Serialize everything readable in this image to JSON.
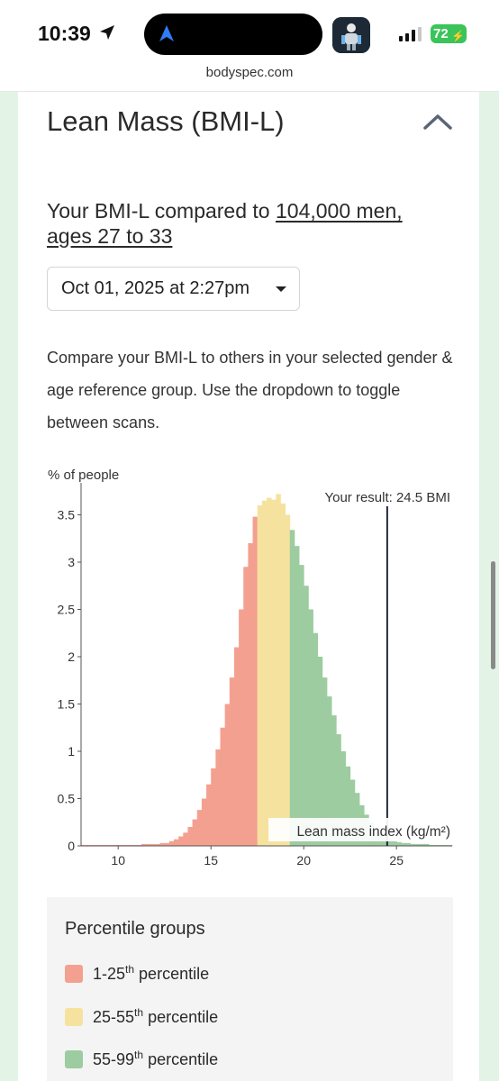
{
  "status_bar": {
    "time": "10:39",
    "battery": "72",
    "icons": [
      "location-arrow-icon",
      "navigation-icon",
      "app-icon",
      "signal-icon",
      "battery-icon"
    ]
  },
  "browser": {
    "url": "bodyspec.com"
  },
  "section": {
    "title": "Lean Mass (BMI-L)",
    "collapse_icon": "chevron-up-icon"
  },
  "comparison": {
    "prefix": "Your BMI-L compared to ",
    "group_link": "104,000 men,",
    "age_link": "ages 27 to 33"
  },
  "scan_select": {
    "selected": "Oct 01, 2025 at 2:27pm"
  },
  "description": "Compare your BMI-L to others in your selected gender & age reference group. Use the dropdown to toggle between scans.",
  "colors": {
    "low": "#f4a090",
    "mid": "#f6e29f",
    "high": "#9ccc9f",
    "marker": "#1f2a3a"
  },
  "chart_data": {
    "type": "bar",
    "ylabel": "% of people",
    "xlabel": "Lean mass index (kg/m²)",
    "xlim": [
      8,
      28
    ],
    "ylim": [
      0,
      3.8
    ],
    "xticks": [
      10,
      15,
      20,
      25
    ],
    "yticks": [
      0,
      0.5,
      1,
      1.5,
      2,
      2.5,
      3,
      3.5
    ],
    "ytick_labels": [
      "0",
      "0.5",
      "1",
      "1.5",
      "2",
      "2.5",
      "3",
      "3.5"
    ],
    "bin_width": 0.25,
    "percentile_cutoffs": [
      17.4,
      19.2
    ],
    "result_value": 24.5,
    "result_label": "Your result: 24.5 BMI",
    "x": [
      8.125,
      8.375,
      8.625,
      8.875,
      9.125,
      9.375,
      9.625,
      9.875,
      10.125,
      10.375,
      10.625,
      10.875,
      11.125,
      11.375,
      11.625,
      11.875,
      12.125,
      12.375,
      12.625,
      12.875,
      13.125,
      13.375,
      13.625,
      13.875,
      14.125,
      14.375,
      14.625,
      14.875,
      15.125,
      15.375,
      15.625,
      15.875,
      16.125,
      16.375,
      16.625,
      16.875,
      17.125,
      17.375,
      17.625,
      17.875,
      18.125,
      18.375,
      18.625,
      18.875,
      19.125,
      19.375,
      19.625,
      19.875,
      20.125,
      20.375,
      20.625,
      20.875,
      21.125,
      21.375,
      21.625,
      21.875,
      22.125,
      22.375,
      22.625,
      22.875,
      23.125,
      23.375,
      23.625,
      23.875,
      24.125,
      24.375,
      24.625,
      24.875,
      25.125,
      25.375,
      25.625,
      25.875,
      26.125,
      26.375,
      26.625,
      26.875,
      27.125,
      27.375,
      27.625,
      27.875
    ],
    "values": [
      0.01,
      0.01,
      0.01,
      0.01,
      0.01,
      0.01,
      0.01,
      0.01,
      0.01,
      0.01,
      0.01,
      0.01,
      0.01,
      0.02,
      0.02,
      0.02,
      0.02,
      0.03,
      0.03,
      0.05,
      0.07,
      0.1,
      0.14,
      0.2,
      0.28,
      0.38,
      0.5,
      0.65,
      0.82,
      1.02,
      1.25,
      1.5,
      1.78,
      2.1,
      2.5,
      2.95,
      3.2,
      3.48,
      3.6,
      3.65,
      3.68,
      3.66,
      3.72,
      3.62,
      3.5,
      3.34,
      3.17,
      2.97,
      2.75,
      2.5,
      2.25,
      2.0,
      1.78,
      1.58,
      1.38,
      1.18,
      1.0,
      0.84,
      0.7,
      0.56,
      0.43,
      0.33,
      0.25,
      0.18,
      0.13,
      0.09,
      0.07,
      0.05,
      0.04,
      0.03,
      0.03,
      0.02,
      0.02,
      0.02,
      0.02,
      0.01,
      0.01,
      0.01,
      0.01,
      0.01
    ]
  },
  "legend": {
    "title": "Percentile groups",
    "items": [
      {
        "range": "1-25",
        "suffix": "th",
        "word": " percentile",
        "color": "#f4a090"
      },
      {
        "range": "25-55",
        "suffix": "th",
        "word": " percentile",
        "color": "#f6e29f"
      },
      {
        "range": "55-99",
        "suffix": "th",
        "word": " percentile",
        "color": "#9ccc9f"
      }
    ]
  }
}
